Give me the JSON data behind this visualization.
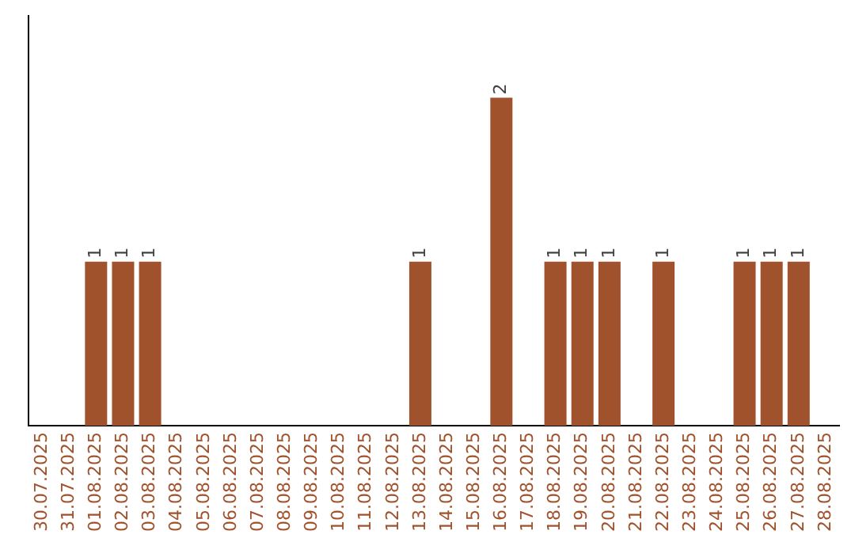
{
  "chart_data": {
    "type": "bar",
    "categories": [
      "30.07.2025",
      "31.07.2025",
      "01.08.2025",
      "02.08.2025",
      "03.08.2025",
      "04.08.2025",
      "05.08.2025",
      "06.08.2025",
      "07.08.2025",
      "08.08.2025",
      "09.08.2025",
      "10.08.2025",
      "11.08.2025",
      "12.08.2025",
      "13.08.2025",
      "14.08.2025",
      "15.08.2025",
      "16.08.2025",
      "17.08.2025",
      "18.08.2025",
      "19.08.2025",
      "20.08.2025",
      "21.08.2025",
      "22.08.2025",
      "23.08.2025",
      "24.08.2025",
      "25.08.2025",
      "26.08.2025",
      "27.08.2025",
      "28.08.2025"
    ],
    "values": [
      0,
      0,
      1,
      1,
      1,
      0,
      0,
      0,
      0,
      0,
      0,
      0,
      0,
      0,
      1,
      0,
      0,
      2,
      0,
      1,
      1,
      1,
      0,
      1,
      0,
      0,
      1,
      1,
      1,
      0
    ],
    "value_labels": [
      null,
      null,
      "1",
      "1",
      "1",
      null,
      null,
      null,
      null,
      null,
      null,
      null,
      null,
      null,
      "1",
      null,
      null,
      "2",
      null,
      "1",
      "1",
      "1",
      null,
      "1",
      null,
      null,
      "1",
      "1",
      "1",
      null
    ],
    "color": "#a0522d",
    "grid": false,
    "legend": false
  }
}
